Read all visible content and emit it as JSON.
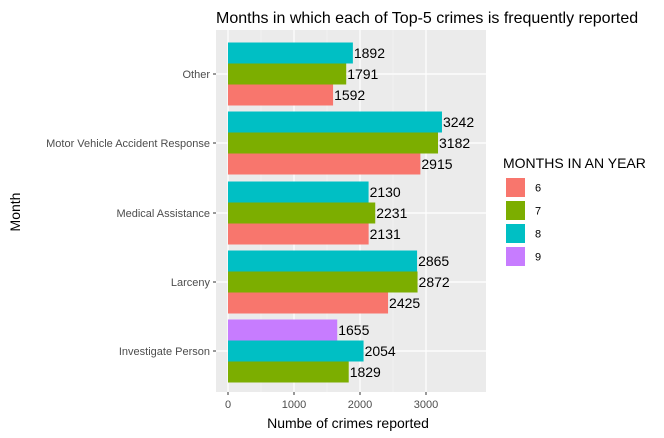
{
  "chart_data": {
    "type": "bar",
    "orientation": "horizontal",
    "title": "Months in which each of Top-5 crimes is frequently reported",
    "xlabel": "Numbe of crimes reported",
    "ylabel": "Month",
    "xlim": [
      0,
      3500
    ],
    "x_ticks": [
      0,
      1000,
      2000,
      3000
    ],
    "grid": true,
    "legend": {
      "title": "MONTHS IN AN YEAR",
      "placement": "right",
      "entries": [
        {
          "label": "6",
          "color": "#F8766D"
        },
        {
          "label": "7",
          "color": "#7CAE00"
        },
        {
          "label": "8",
          "color": "#00BFC4"
        },
        {
          "label": "9",
          "color": "#C77CFF"
        }
      ]
    },
    "categories": [
      "Other",
      "Motor Vehicle Accident Response",
      "Medical Assistance",
      "Larceny",
      "Investigate Person"
    ],
    "groups": [
      {
        "category": "Other",
        "bars": [
          {
            "month": "8",
            "value": 1892,
            "label": "1892"
          },
          {
            "month": "7",
            "value": 1791,
            "label": "1791"
          },
          {
            "month": "6",
            "value": 1592,
            "label": "1592"
          }
        ]
      },
      {
        "category": "Motor Vehicle Accident Response",
        "bars": [
          {
            "month": "8",
            "value": 3242,
            "label": "3242"
          },
          {
            "month": "7",
            "value": 3182,
            "label": "3182"
          },
          {
            "month": "6",
            "value": 2915,
            "label": "2915"
          }
        ]
      },
      {
        "category": "Medical Assistance",
        "bars": [
          {
            "month": "8",
            "value": 2130,
            "label": "2130"
          },
          {
            "month": "7",
            "value": 2231,
            "label": "2231"
          },
          {
            "month": "6",
            "value": 2131,
            "label": "2131"
          }
        ]
      },
      {
        "category": "Larceny",
        "bars": [
          {
            "month": "8",
            "value": 2865,
            "label": "2865"
          },
          {
            "month": "7",
            "value": 2872,
            "label": "2872"
          },
          {
            "month": "6",
            "value": 2425,
            "label": "2425"
          }
        ]
      },
      {
        "category": "Investigate Person",
        "bars": [
          {
            "month": "9",
            "value": 1655,
            "label": "1655"
          },
          {
            "month": "8",
            "value": 2054,
            "label": "2054"
          },
          {
            "month": "7",
            "value": 1829,
            "label": "1829"
          }
        ]
      }
    ],
    "colors": {
      "panel_background": "#EBEBEB",
      "grid_major": "#FFFFFF",
      "grid_minor": "#F2F2F2"
    }
  }
}
